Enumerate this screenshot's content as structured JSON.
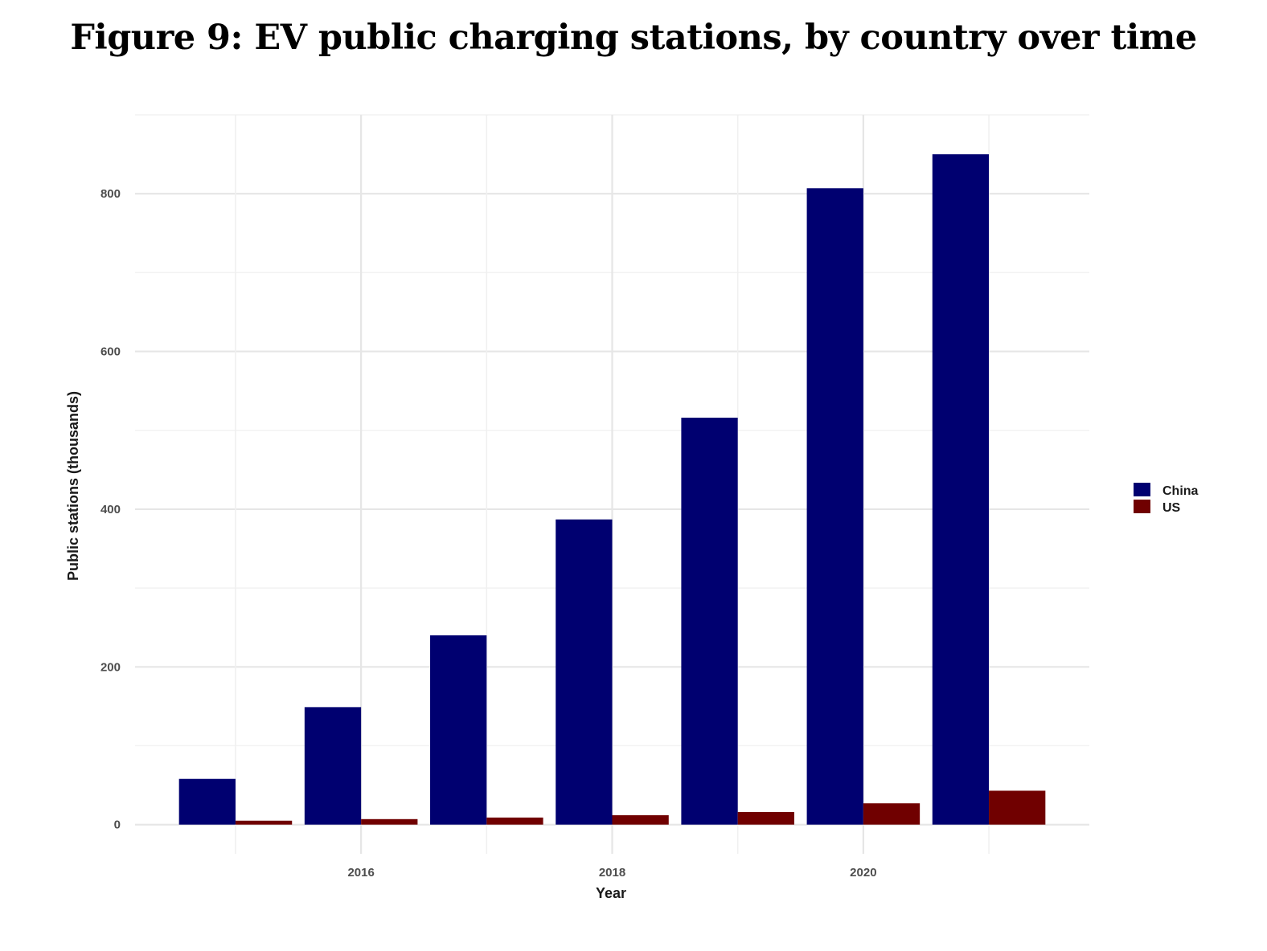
{
  "figure": {
    "title": "Figure 9: EV public charging stations, by country over time"
  },
  "chart_data": {
    "type": "bar",
    "title": "Figure 9: EV public charging stations, by country over time",
    "xlabel": "Year",
    "ylabel": "Public stations (thousands)",
    "categories": [
      "2015",
      "2016",
      "2017",
      "2018",
      "2019",
      "2020",
      "2021"
    ],
    "x": [
      2015,
      2016,
      2017,
      2018,
      2019,
      2020,
      2021
    ],
    "x_ticks": [
      "2016",
      "2018",
      "2020"
    ],
    "y_ticks": [
      "0",
      "200",
      "400",
      "600",
      "800"
    ],
    "xlim": [
      2014.2,
      2021.8
    ],
    "ylim": [
      -37,
      900
    ],
    "grid": true,
    "legend_position": "right",
    "series": [
      {
        "name": "China",
        "color": "#000070",
        "values": [
          58,
          149,
          240,
          387,
          516,
          807,
          850
        ]
      },
      {
        "name": "US",
        "color": "#700000",
        "values": [
          5,
          7,
          9,
          12,
          16,
          27,
          43
        ]
      }
    ]
  }
}
